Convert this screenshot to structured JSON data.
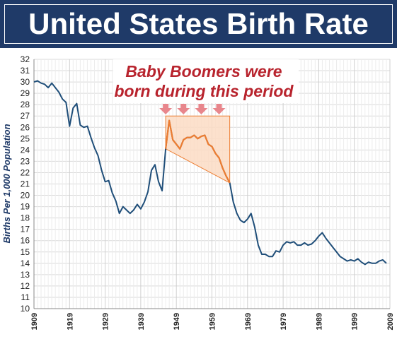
{
  "colors": {
    "title_bg": "#1f3a68",
    "line": "#1f4e79",
    "highlight_line": "#ed7d31",
    "highlight_fill": "#fbdcc4",
    "arrow": "#e8868c",
    "annotation_text": "#b8232d",
    "grid": "#d9d9d9"
  },
  "chart_data": {
    "type": "line",
    "title": "United States Birth Rate",
    "ylabel": "Births Per 1,000 Population",
    "xlabel": "",
    "xlim": [
      1909,
      2009
    ],
    "ylim": [
      10,
      32
    ],
    "grid": true,
    "x_ticks": [
      1909,
      1919,
      1929,
      1939,
      1949,
      1959,
      1969,
      1979,
      1989,
      1999,
      2009
    ],
    "y_ticks": [
      10,
      11,
      12,
      13,
      14,
      15,
      16,
      17,
      18,
      19,
      20,
      21,
      22,
      23,
      24,
      25,
      26,
      27,
      28,
      29,
      30,
      31,
      32
    ],
    "x": [
      1909,
      1910,
      1911,
      1912,
      1913,
      1914,
      1915,
      1916,
      1917,
      1918,
      1919,
      1920,
      1921,
      1922,
      1923,
      1924,
      1925,
      1926,
      1927,
      1928,
      1929,
      1930,
      1931,
      1932,
      1933,
      1934,
      1935,
      1936,
      1937,
      1938,
      1939,
      1940,
      1941,
      1942,
      1943,
      1944,
      1945,
      1946,
      1947,
      1948,
      1949,
      1950,
      1951,
      1952,
      1953,
      1954,
      1955,
      1956,
      1957,
      1958,
      1959,
      1960,
      1961,
      1962,
      1963,
      1964,
      1965,
      1966,
      1967,
      1968,
      1969,
      1970,
      1971,
      1972,
      1973,
      1974,
      1975,
      1976,
      1977,
      1978,
      1979,
      1980,
      1981,
      1982,
      1983,
      1984,
      1985,
      1986,
      1987,
      1988,
      1989,
      1990,
      1991,
      1992,
      1993,
      1994,
      1995,
      1996,
      1997,
      1998,
      1999,
      2000,
      2001,
      2002,
      2003,
      2004,
      2005,
      2006,
      2007,
      2008
    ],
    "y": [
      30.0,
      30.1,
      29.9,
      29.8,
      29.5,
      29.9,
      29.5,
      29.1,
      28.5,
      28.2,
      26.1,
      27.7,
      28.1,
      26.2,
      26.0,
      26.1,
      25.1,
      24.2,
      23.5,
      22.2,
      21.2,
      21.3,
      20.2,
      19.5,
      18.4,
      19.0,
      18.7,
      18.4,
      18.7,
      19.2,
      18.8,
      19.4,
      20.3,
      22.2,
      22.7,
      21.2,
      20.4,
      24.1,
      26.6,
      24.9,
      24.5,
      24.1,
      24.9,
      25.1,
      25.1,
      25.3,
      25.0,
      25.2,
      25.3,
      24.5,
      24.3,
      23.7,
      23.3,
      22.4,
      21.7,
      21.1,
      19.4,
      18.4,
      17.8,
      17.6,
      17.9,
      18.4,
      17.2,
      15.6,
      14.8,
      14.8,
      14.6,
      14.6,
      15.1,
      15.0,
      15.6,
      15.9,
      15.8,
      15.9,
      15.6,
      15.6,
      15.8,
      15.6,
      15.7,
      16.0,
      16.4,
      16.7,
      16.2,
      15.8,
      15.4,
      15.0,
      14.6,
      14.4,
      14.2,
      14.3,
      14.2,
      14.4,
      14.1,
      13.9,
      14.1,
      14.0,
      14.0,
      14.2,
      14.3,
      14.0
    ],
    "highlight": {
      "x_start": 1946,
      "x_end": 1964,
      "top_y": 27,
      "annotation": [
        "Baby Boomers were",
        "born during this period"
      ],
      "arrow_x": [
        1946,
        1951,
        1956,
        1961
      ]
    }
  }
}
